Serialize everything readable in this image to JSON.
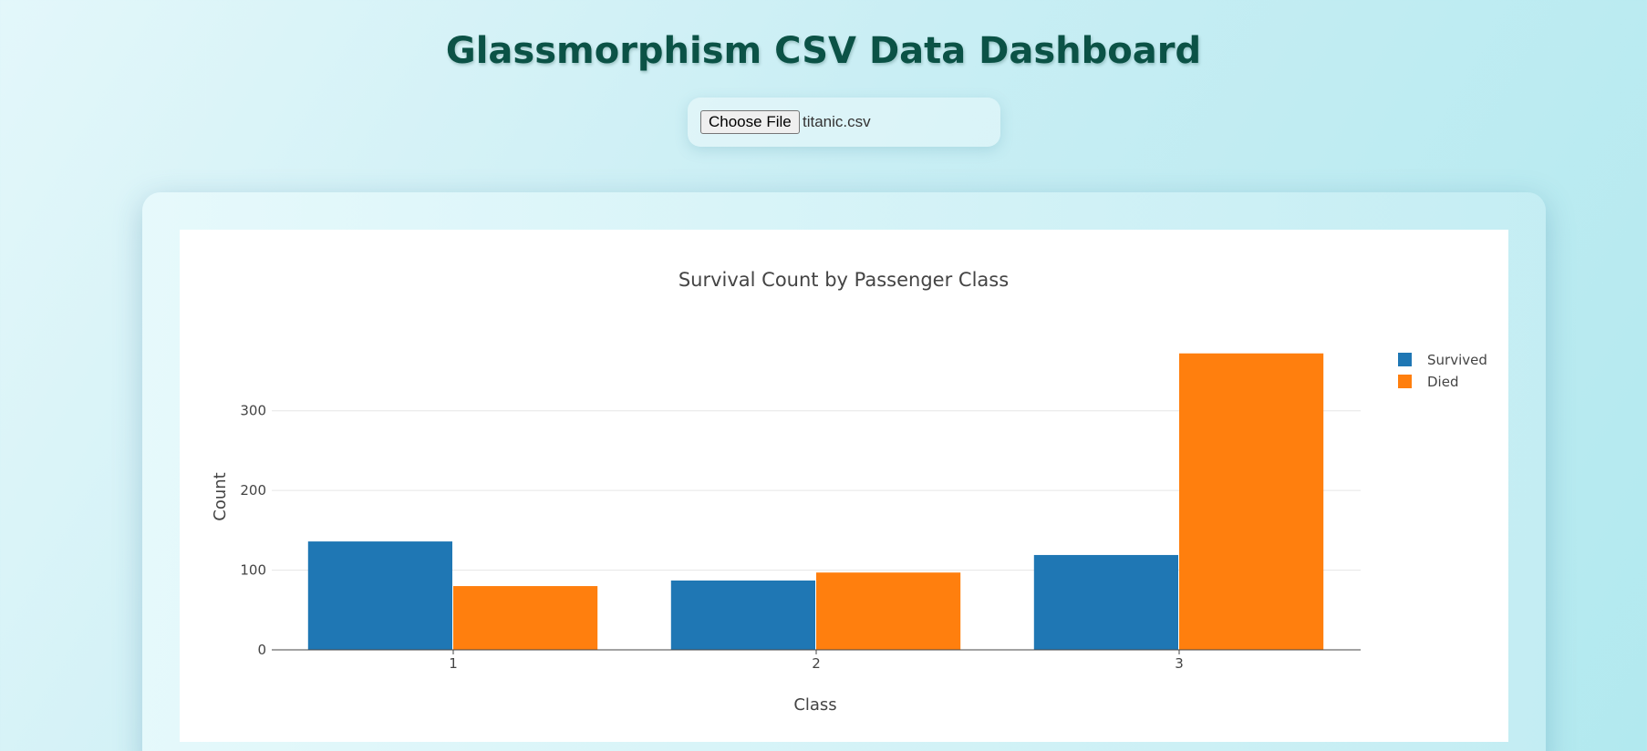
{
  "page": {
    "title": "Glassmorphism CSV Data Dashboard"
  },
  "file_input": {
    "button_label": "Choose File",
    "file_name": "titanic.csv"
  },
  "colors": {
    "title": "#0b5246",
    "survived": "#1f77b4",
    "died": "#ff7f0e"
  },
  "chart_data": {
    "type": "bar",
    "title": "Survival Count by Passenger Class",
    "xlabel": "Class",
    "ylabel": "Count",
    "categories": [
      "1",
      "2",
      "3"
    ],
    "series": [
      {
        "name": "Survived",
        "values": [
          136,
          87,
          119
        ]
      },
      {
        "name": "Died",
        "values": [
          80,
          97,
          372
        ]
      }
    ],
    "yticks": [
      0,
      100,
      200,
      300
    ],
    "ylim": [
      0,
      390
    ],
    "grid": true,
    "legend_position": "top-right"
  }
}
